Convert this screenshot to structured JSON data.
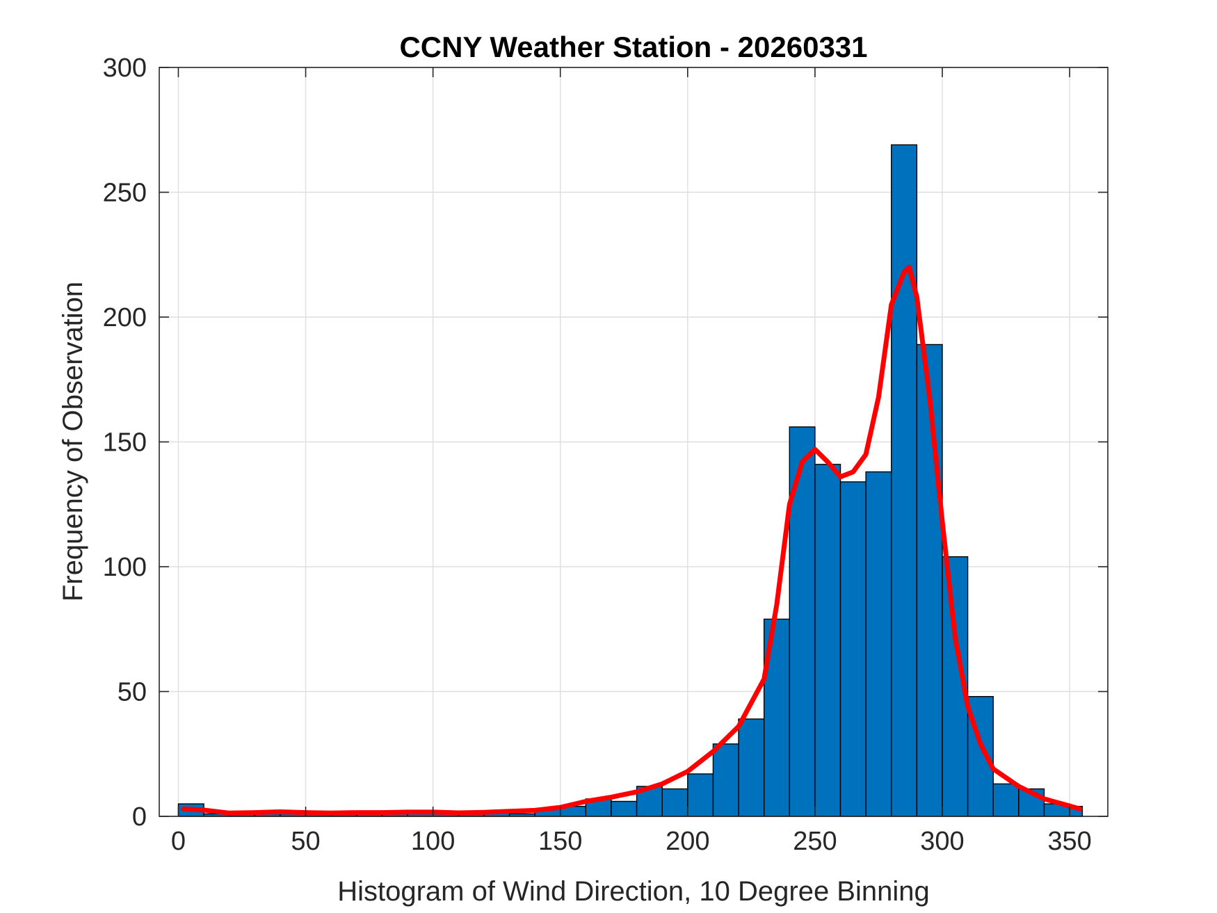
{
  "chart_data": {
    "type": "bar",
    "title": "CCNY Weather Station - 20260331",
    "xlabel": "Histogram of Wind Direction, 10 Degree Binning",
    "ylabel": "Frequency of Observation",
    "xlim": [
      -7.5,
      365
    ],
    "ylim": [
      0,
      300
    ],
    "xticks": [
      0,
      50,
      100,
      150,
      200,
      250,
      300,
      350
    ],
    "yticks": [
      0,
      50,
      100,
      150,
      200,
      250,
      300
    ],
    "grid": true,
    "bin_width": 10,
    "bin_edges": [
      0,
      10,
      20,
      30,
      40,
      50,
      60,
      70,
      80,
      90,
      100,
      110,
      120,
      130,
      140,
      150,
      160,
      170,
      180,
      190,
      200,
      210,
      220,
      230,
      240,
      250,
      260,
      270,
      280,
      290,
      300,
      310,
      320,
      330,
      340,
      350,
      355
    ],
    "counts": [
      5,
      1,
      1,
      1,
      1,
      1,
      1,
      1,
      1,
      2,
      1,
      1,
      2,
      1,
      3,
      4,
      7,
      6,
      12,
      11,
      17,
      29,
      39,
      79,
      156,
      141,
      134,
      138,
      269,
      189,
      104,
      48,
      13,
      11,
      5,
      4
    ],
    "bar_color": "#0072bd",
    "series": [
      {
        "name": "",
        "color": "#ff0000",
        "x": [
          2,
          10,
          20,
          30,
          40,
          50,
          60,
          70,
          80,
          90,
          100,
          110,
          120,
          130,
          140,
          150,
          160,
          170,
          180,
          190,
          200,
          210,
          220,
          230,
          235,
          240,
          245,
          250,
          255,
          260,
          265,
          270,
          275,
          280,
          285,
          287,
          290,
          295,
          300,
          305,
          310,
          315,
          320,
          330,
          340,
          354
        ],
        "y": [
          3,
          2.5,
          1.3,
          1.5,
          1.8,
          1.5,
          1.3,
          1.5,
          1.5,
          1.7,
          1.7,
          1.4,
          1.6,
          2,
          2.4,
          3.6,
          6,
          7.7,
          9.8,
          13,
          18,
          26,
          36,
          55,
          85,
          125,
          142,
          147,
          142,
          136,
          138,
          145,
          168,
          205,
          218,
          220,
          208,
          168,
          118,
          72,
          44,
          29,
          19,
          12,
          7,
          3
        ]
      }
    ]
  }
}
